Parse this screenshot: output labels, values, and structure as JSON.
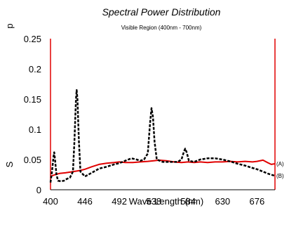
{
  "chart_data": {
    "type": "line",
    "title": "Spectral Power Distribution",
    "subtitle": "Visible Region (400nm - 700nm)",
    "xlabel": "Wave Length (nm)",
    "ylabel": "S",
    "ylabel_top": "p",
    "xlim": [
      400,
      700
    ],
    "ylim": [
      0,
      0.25
    ],
    "x_ticks": [
      "400",
      "446",
      "492",
      "538",
      "584",
      "630",
      "676"
    ],
    "y_ticks": [
      "0",
      "0.05",
      "0.1",
      "0.15",
      "0.2",
      "0.25"
    ],
    "grid": false,
    "series": [
      {
        "name": "(A)",
        "color": "#e00000",
        "style": "solid",
        "points": [
          [
            400,
            0.022
          ],
          [
            406,
            0.025
          ],
          [
            412,
            0.027
          ],
          [
            420,
            0.028
          ],
          [
            430,
            0.03
          ],
          [
            440,
            0.032
          ],
          [
            446,
            0.034
          ],
          [
            455,
            0.038
          ],
          [
            465,
            0.042
          ],
          [
            475,
            0.044
          ],
          [
            485,
            0.045
          ],
          [
            492,
            0.046
          ],
          [
            500,
            0.045
          ],
          [
            510,
            0.045
          ],
          [
            520,
            0.046
          ],
          [
            530,
            0.047
          ],
          [
            538,
            0.048
          ],
          [
            545,
            0.049
          ],
          [
            555,
            0.048
          ],
          [
            565,
            0.046
          ],
          [
            575,
            0.045
          ],
          [
            584,
            0.046
          ],
          [
            592,
            0.045
          ],
          [
            600,
            0.046
          ],
          [
            610,
            0.045
          ],
          [
            620,
            0.046
          ],
          [
            630,
            0.046
          ],
          [
            640,
            0.047
          ],
          [
            650,
            0.046
          ],
          [
            660,
            0.047
          ],
          [
            670,
            0.046
          ],
          [
            676,
            0.047
          ],
          [
            684,
            0.049
          ],
          [
            690,
            0.045
          ],
          [
            695,
            0.042
          ],
          [
            700,
            0.043
          ]
        ]
      },
      {
        "name": "(B)",
        "color": "#000000",
        "style": "dashed",
        "points": [
          [
            400,
            0.012
          ],
          [
            402,
            0.03
          ],
          [
            404,
            0.055
          ],
          [
            405,
            0.062
          ],
          [
            406,
            0.05
          ],
          [
            408,
            0.025
          ],
          [
            410,
            0.015
          ],
          [
            414,
            0.014
          ],
          [
            418,
            0.015
          ],
          [
            422,
            0.018
          ],
          [
            426,
            0.02
          ],
          [
            430,
            0.03
          ],
          [
            432,
            0.08
          ],
          [
            434,
            0.15
          ],
          [
            435,
            0.165
          ],
          [
            436,
            0.15
          ],
          [
            438,
            0.08
          ],
          [
            440,
            0.03
          ],
          [
            446,
            0.022
          ],
          [
            455,
            0.028
          ],
          [
            465,
            0.035
          ],
          [
            475,
            0.038
          ],
          [
            485,
            0.042
          ],
          [
            492,
            0.044
          ],
          [
            500,
            0.048
          ],
          [
            508,
            0.052
          ],
          [
            515,
            0.05
          ],
          [
            520,
            0.048
          ],
          [
            525,
            0.05
          ],
          [
            530,
            0.06
          ],
          [
            533,
            0.11
          ],
          [
            535,
            0.135
          ],
          [
            537,
            0.12
          ],
          [
            539,
            0.08
          ],
          [
            542,
            0.05
          ],
          [
            550,
            0.046
          ],
          [
            560,
            0.046
          ],
          [
            570,
            0.046
          ],
          [
            575,
            0.05
          ],
          [
            578,
            0.062
          ],
          [
            580,
            0.068
          ],
          [
            582,
            0.062
          ],
          [
            585,
            0.048
          ],
          [
            592,
            0.046
          ],
          [
            600,
            0.05
          ],
          [
            610,
            0.052
          ],
          [
            620,
            0.052
          ],
          [
            630,
            0.05
          ],
          [
            640,
            0.047
          ],
          [
            650,
            0.043
          ],
          [
            660,
            0.04
          ],
          [
            670,
            0.036
          ],
          [
            676,
            0.034
          ],
          [
            684,
            0.03
          ],
          [
            692,
            0.026
          ],
          [
            700,
            0.023
          ]
        ]
      }
    ]
  }
}
